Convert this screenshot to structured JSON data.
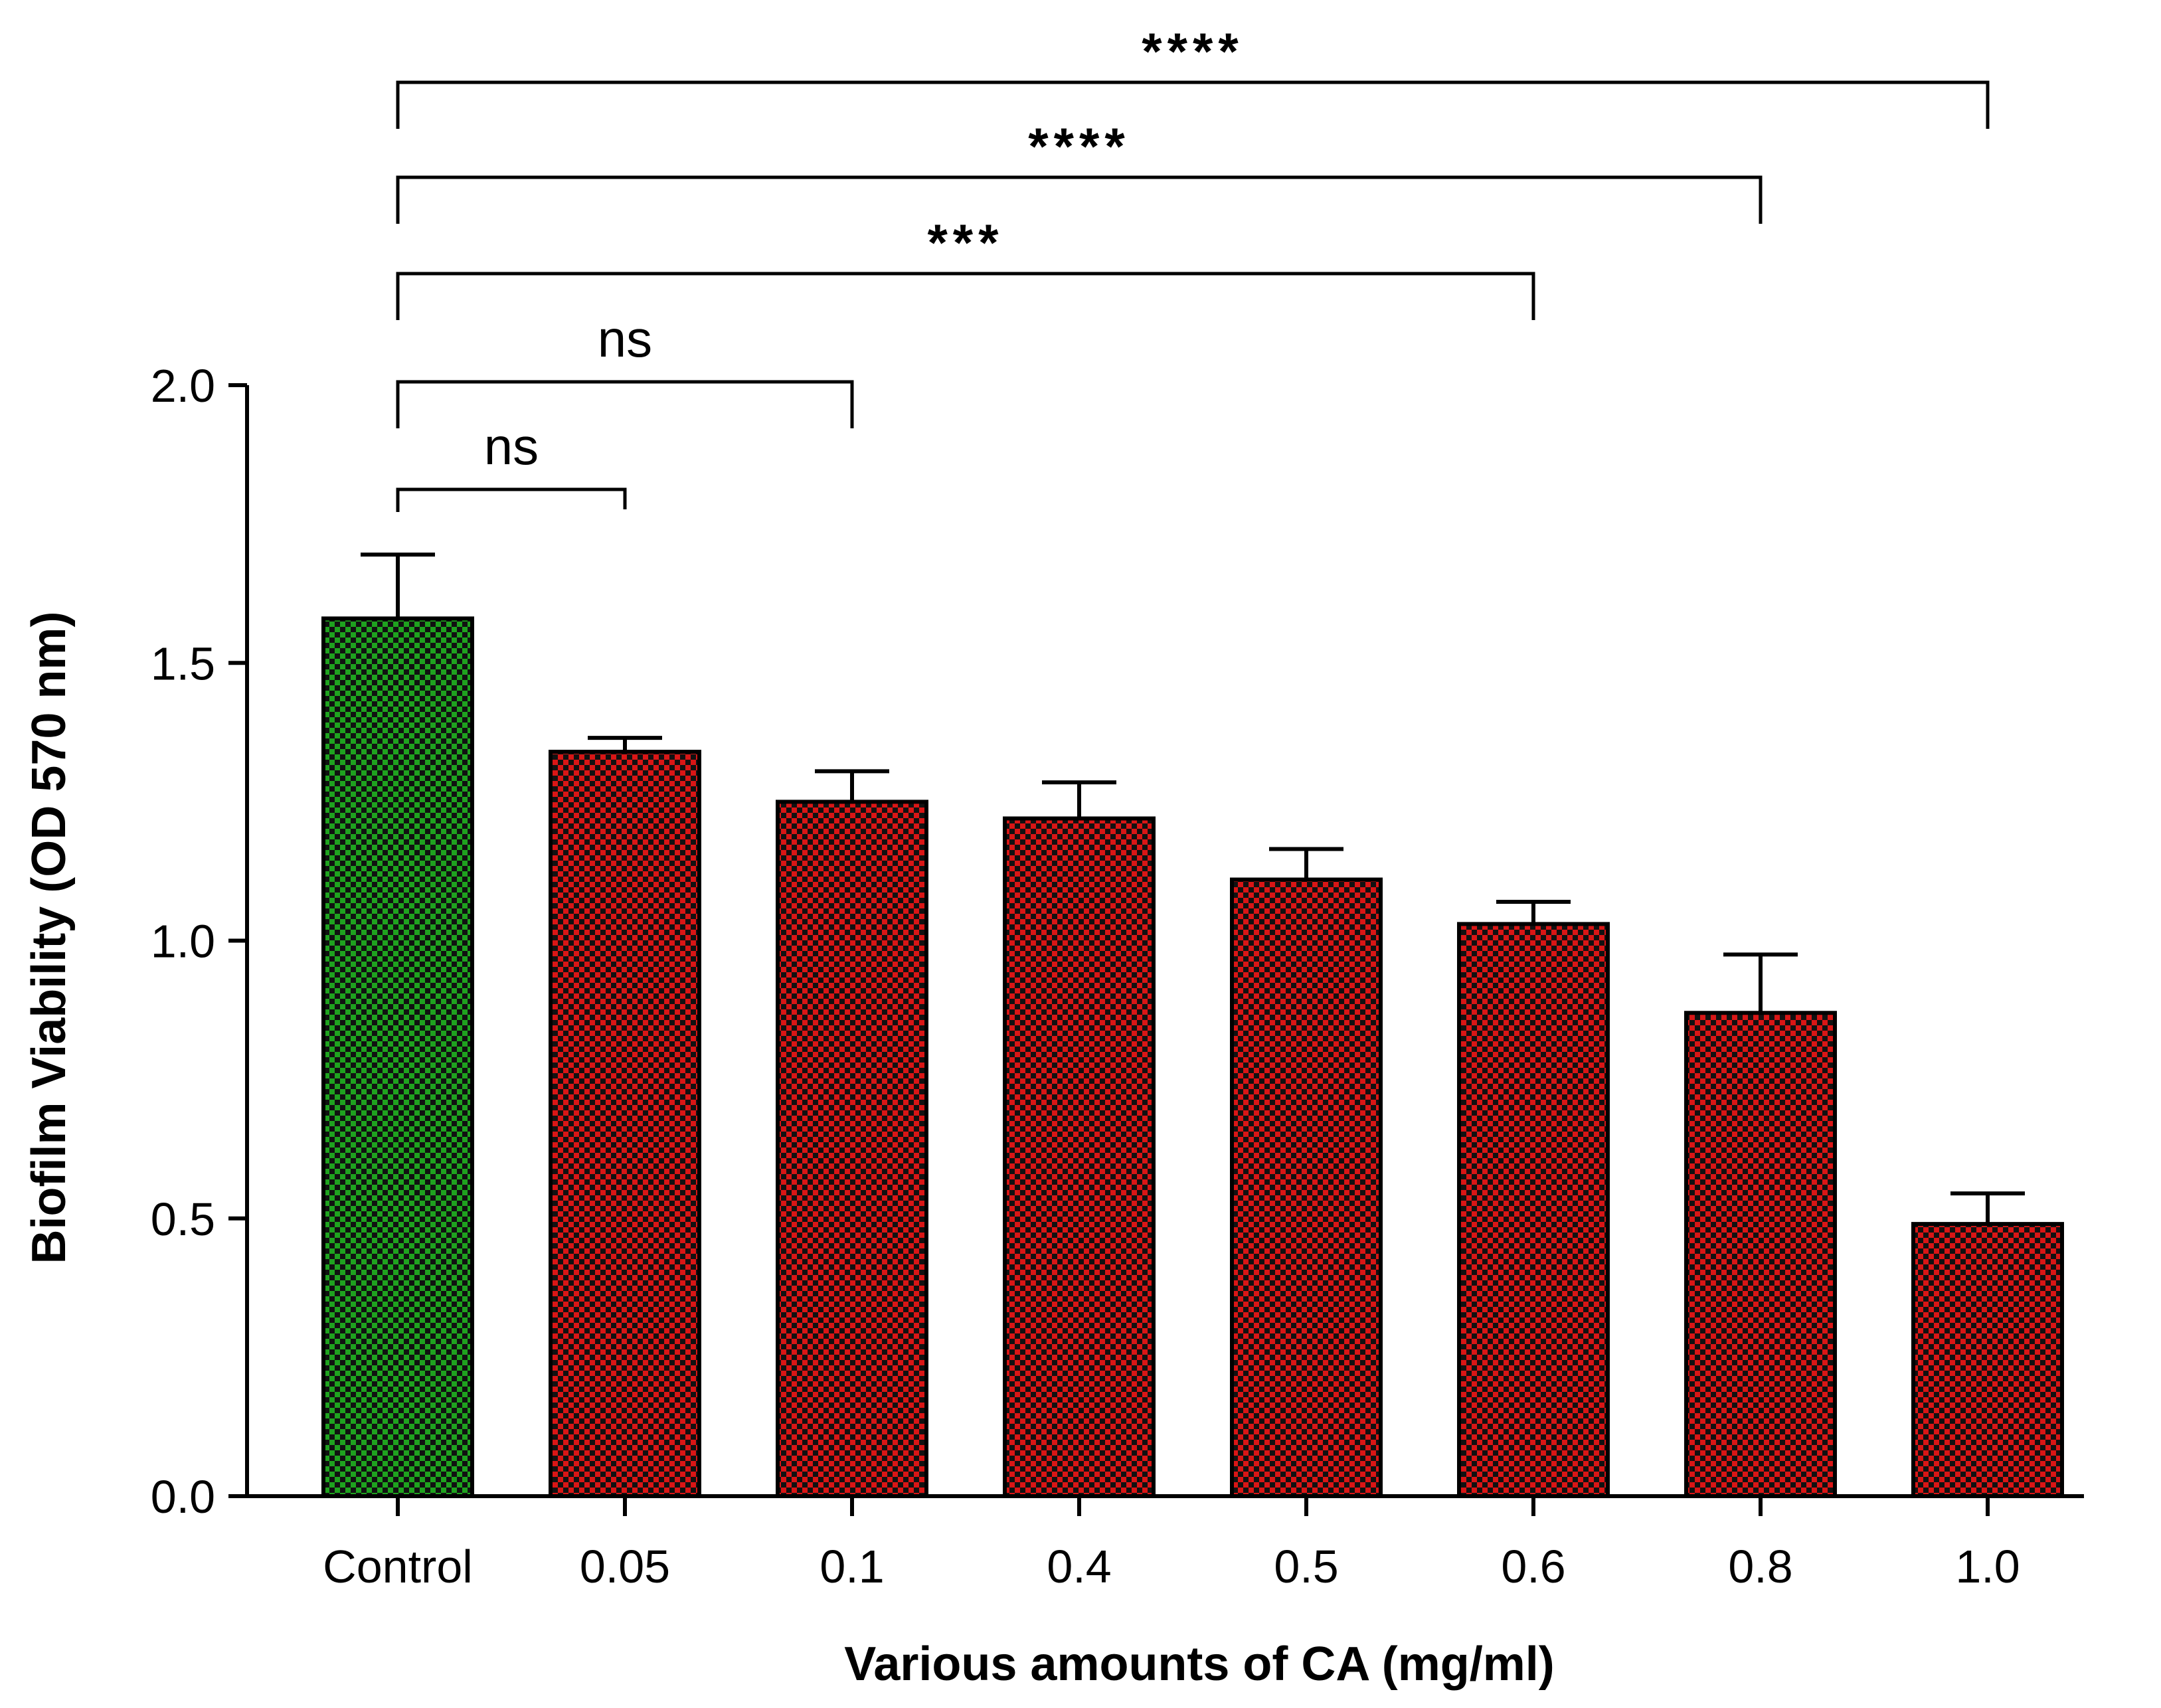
{
  "chart_data": {
    "type": "bar",
    "title": "",
    "xlabel": "Various amounts of CA (mg/ml)",
    "ylabel": "Biofilm Viability (OD 570 nm)",
    "ylim": [
      0,
      2.0
    ],
    "yticks": [
      0.0,
      0.5,
      1.0,
      1.5,
      2.0
    ],
    "ytick_labels": [
      "0.0",
      "0.5",
      "1.0",
      "1.5",
      "2.0"
    ],
    "categories": [
      "Control",
      "0.05",
      "0.1",
      "0.4",
      "0.5",
      "0.6",
      "0.8",
      "1.0"
    ],
    "values": [
      1.58,
      1.34,
      1.25,
      1.22,
      1.11,
      1.03,
      0.87,
      0.49
    ],
    "errors": [
      0.115,
      0.025,
      0.055,
      0.065,
      0.055,
      0.04,
      0.105,
      0.055
    ],
    "bar_colors": [
      "#1fa21f",
      "#d91616",
      "#d91616",
      "#d91616",
      "#d91616",
      "#d91616",
      "#d91616",
      "#d91616"
    ],
    "pattern_dark": "#111111",
    "grid": false,
    "legend": "none",
    "comparisons": [
      {
        "from": "Control",
        "to": "0.05",
        "label": "ns"
      },
      {
        "from": "Control",
        "to": "0.1",
        "label": "ns"
      },
      {
        "from": "Control",
        "to": "0.6",
        "label": "***"
      },
      {
        "from": "Control",
        "to": "0.8",
        "label": "****"
      },
      {
        "from": "Control",
        "to": "1.0",
        "label": "****"
      }
    ]
  }
}
